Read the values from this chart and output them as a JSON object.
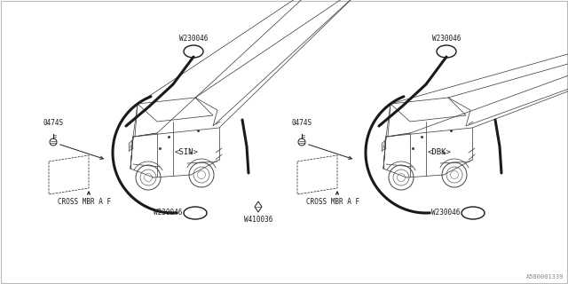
{
  "bg_color": "#ffffff",
  "line_color": "#1a1a1a",
  "car_color": "#444444",
  "fig_width": 6.4,
  "fig_height": 3.2,
  "part_number": "A580001339",
  "left_variant": "<SIN>",
  "right_variant": "<DBK>",
  "label_W230046": "W230046",
  "label_W410036": "W410036",
  "label_0474S": "0474S",
  "label_cross_mbr": "CROSS MBR A F",
  "font_size_label": 5.5,
  "font_size_part": 5.0,
  "font_size_variant": 6.5,
  "border_color": "#bbbbbb"
}
